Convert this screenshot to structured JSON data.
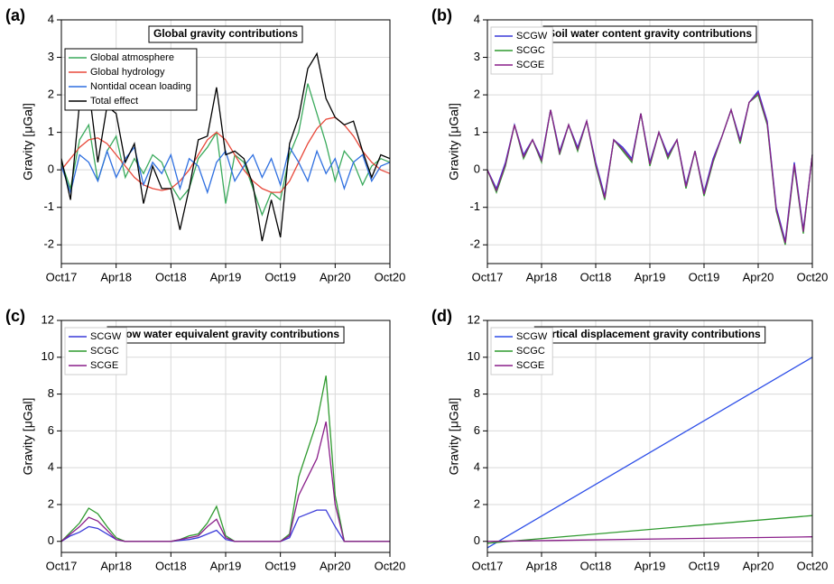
{
  "chart_data": [
    {
      "type": "line",
      "label": "(a)",
      "title": "Global gravity contributions",
      "ylabel": "Gravity [μGal]",
      "x": [
        "2017-10",
        "2017-11",
        "2017-12",
        "2018-01",
        "2018-02",
        "2018-03",
        "2018-04",
        "2018-05",
        "2018-06",
        "2018-07",
        "2018-08",
        "2018-09",
        "2018-10",
        "2018-11",
        "2018-12",
        "2019-01",
        "2019-02",
        "2019-03",
        "2019-04",
        "2019-05",
        "2019-06",
        "2019-07",
        "2019-08",
        "2019-09",
        "2019-10",
        "2019-11",
        "2019-12",
        "2020-01",
        "2020-02",
        "2020-03",
        "2020-04",
        "2020-05",
        "2020-06",
        "2020-07",
        "2020-08",
        "2020-09",
        "2020-10"
      ],
      "xlim": [
        "2017-10",
        "2020-10"
      ],
      "xticks": [
        {
          "value": "2017-10",
          "label": "Oct17"
        },
        {
          "value": "2018-04",
          "label": "Apr18"
        },
        {
          "value": "2018-10",
          "label": "Oct18"
        },
        {
          "value": "2019-04",
          "label": "Apr19"
        },
        {
          "value": "2019-10",
          "label": "Oct19"
        },
        {
          "value": "2020-04",
          "label": "Apr20"
        },
        {
          "value": "2020-10",
          "label": "Oct20"
        }
      ],
      "ylim": [
        -2.5,
        4
      ],
      "yticks": [
        -2,
        -1,
        0,
        1,
        2,
        3,
        4
      ],
      "grid": true,
      "legend": "upper-left",
      "series": [
        {
          "name": "Global atmosphere",
          "color": "#3aaa5c",
          "values": [
            0.2,
            -0.5,
            0.8,
            1.2,
            -0.3,
            0.5,
            0.9,
            -0.2,
            0.3,
            -0.1,
            0.4,
            0.2,
            -0.4,
            -0.8,
            -0.5,
            0.3,
            0.6,
            1.0,
            -0.9,
            0.4,
            0.2,
            -0.5,
            -1.2,
            -0.6,
            -0.8,
            0.4,
            1.0,
            2.3,
            1.5,
            0.7,
            -0.3,
            0.5,
            0.2,
            -0.4,
            0.1,
            0.3,
            0.2
          ]
        },
        {
          "name": "Global hydrology",
          "color": "#e8483a",
          "values": [
            0,
            0.3,
            0.6,
            0.8,
            0.85,
            0.7,
            0.4,
            0.1,
            -0.2,
            -0.4,
            -0.5,
            -0.55,
            -0.5,
            -0.3,
            0,
            0.4,
            0.8,
            1.0,
            0.8,
            0.4,
            0,
            -0.3,
            -0.5,
            -0.6,
            -0.6,
            -0.3,
            0.2,
            0.7,
            1.1,
            1.35,
            1.4,
            1.2,
            0.9,
            0.5,
            0.2,
            0,
            -0.1
          ]
        },
        {
          "name": "Nontidal ocean loading",
          "color": "#2e6fe0",
          "values": [
            0.1,
            -0.6,
            0.4,
            0.2,
            -0.3,
            0.5,
            -0.2,
            0.3,
            0.6,
            -0.4,
            0.2,
            -0.1,
            0.4,
            -0.5,
            0.3,
            0.1,
            -0.6,
            0.2,
            0.5,
            -0.3,
            0.1,
            0.4,
            -0.2,
            0.3,
            -0.4,
            0.6,
            0.2,
            -0.3,
            0.5,
            -0.1,
            0.3,
            -0.5,
            0.2,
            0.4,
            -0.3,
            0.1,
            0.2
          ]
        },
        {
          "name": "Total effect",
          "color": "#000000",
          "values": [
            0.3,
            -0.8,
            1.8,
            2.2,
            0.2,
            1.7,
            1.5,
            0.2,
            0.7,
            -0.9,
            0.1,
            -0.5,
            -0.5,
            -1.6,
            -0.5,
            0.8,
            0.9,
            2.2,
            0.4,
            0.5,
            0.3,
            -0.4,
            -1.9,
            -0.8,
            -1.8,
            0.7,
            1.4,
            2.7,
            3.1,
            1.9,
            1.4,
            1.2,
            1.3,
            0.5,
            -0.2,
            0.4,
            0.3
          ]
        }
      ]
    },
    {
      "type": "line",
      "label": "(b)",
      "title": "Soil water content gravity contributions",
      "ylabel": "Gravity [μGal]",
      "x": [
        "2017-10",
        "2017-11",
        "2017-12",
        "2018-01",
        "2018-02",
        "2018-03",
        "2018-04",
        "2018-05",
        "2018-06",
        "2018-07",
        "2018-08",
        "2018-09",
        "2018-10",
        "2018-11",
        "2018-12",
        "2019-01",
        "2019-02",
        "2019-03",
        "2019-04",
        "2019-05",
        "2019-06",
        "2019-07",
        "2019-08",
        "2019-09",
        "2019-10",
        "2019-11",
        "2019-12",
        "2020-01",
        "2020-02",
        "2020-03",
        "2020-04",
        "2020-05",
        "2020-06",
        "2020-07",
        "2020-08",
        "2020-09",
        "2020-10"
      ],
      "xlim": [
        "2017-10",
        "2020-10"
      ],
      "xticks": [
        {
          "value": "2017-10",
          "label": "Oct17"
        },
        {
          "value": "2018-04",
          "label": "Apr18"
        },
        {
          "value": "2018-10",
          "label": "Oct18"
        },
        {
          "value": "2019-04",
          "label": "Apr19"
        },
        {
          "value": "2019-10",
          "label": "Oct19"
        },
        {
          "value": "2020-04",
          "label": "Apr20"
        },
        {
          "value": "2020-10",
          "label": "Oct20"
        }
      ],
      "ylim": [
        -2.5,
        4
      ],
      "yticks": [
        -2,
        -1,
        0,
        1,
        2,
        3,
        4
      ],
      "grid": true,
      "legend": "upper-left",
      "series": [
        {
          "name": "SCGW",
          "color": "#3a3ad8",
          "values": [
            0,
            -0.5,
            0.2,
            1.2,
            0.4,
            0.8,
            0.3,
            1.6,
            0.5,
            1.2,
            0.6,
            1.3,
            0.2,
            -0.7,
            0.8,
            0.6,
            0.3,
            1.5,
            0.2,
            1.0,
            0.4,
            0.8,
            -0.4,
            0.5,
            -0.6,
            0.3,
            0.9,
            1.6,
            0.8,
            1.8,
            2.1,
            1.3,
            -1.0,
            -1.9,
            0.2,
            -1.6,
            0.4
          ]
        },
        {
          "name": "SCGC",
          "color": "#2f9a2f",
          "values": [
            0,
            -0.6,
            0.1,
            1.2,
            0.3,
            0.8,
            0.2,
            1.6,
            0.4,
            1.2,
            0.5,
            1.3,
            0.1,
            -0.8,
            0.8,
            0.5,
            0.2,
            1.5,
            0.1,
            1.0,
            0.3,
            0.8,
            -0.5,
            0.5,
            -0.7,
            0.2,
            0.9,
            1.6,
            0.7,
            1.8,
            2.0,
            1.2,
            -1.1,
            -2.0,
            0.1,
            -1.7,
            0.4
          ]
        },
        {
          "name": "SCGE",
          "color": "#8a1f8a",
          "values": [
            0,
            -0.55,
            0.15,
            1.2,
            0.35,
            0.8,
            0.25,
            1.6,
            0.45,
            1.2,
            0.55,
            1.3,
            0.15,
            -0.75,
            0.8,
            0.55,
            0.25,
            1.5,
            0.15,
            1.0,
            0.35,
            0.8,
            -0.45,
            0.5,
            -0.65,
            0.25,
            0.9,
            1.6,
            0.75,
            1.8,
            2.05,
            1.25,
            -1.05,
            -1.95,
            0.15,
            -1.65,
            0.4
          ]
        }
      ]
    },
    {
      "type": "line",
      "label": "(c)",
      "title": "Snow water equivalent gravity contributions",
      "ylabel": "Gravity [μGal]",
      "x": [
        "2017-10",
        "2017-11",
        "2017-12",
        "2018-01",
        "2018-02",
        "2018-03",
        "2018-04",
        "2018-05",
        "2018-06",
        "2018-07",
        "2018-08",
        "2018-09",
        "2018-10",
        "2018-11",
        "2018-12",
        "2019-01",
        "2019-02",
        "2019-03",
        "2019-04",
        "2019-05",
        "2019-06",
        "2019-07",
        "2019-08",
        "2019-09",
        "2019-10",
        "2019-11",
        "2019-12",
        "2020-01",
        "2020-02",
        "2020-03",
        "2020-04",
        "2020-05",
        "2020-06",
        "2020-07",
        "2020-08",
        "2020-09",
        "2020-10"
      ],
      "xlim": [
        "2017-10",
        "2020-10"
      ],
      "xticks": [
        {
          "value": "2017-10",
          "label": "Oct17"
        },
        {
          "value": "2018-04",
          "label": "Apr18"
        },
        {
          "value": "2018-10",
          "label": "Oct18"
        },
        {
          "value": "2019-04",
          "label": "Apr19"
        },
        {
          "value": "2019-10",
          "label": "Oct19"
        },
        {
          "value": "2020-04",
          "label": "Apr20"
        },
        {
          "value": "2020-10",
          "label": "Oct20"
        }
      ],
      "ylim": [
        -0.6,
        12
      ],
      "yticks": [
        0,
        2,
        4,
        6,
        8,
        10,
        12
      ],
      "grid": true,
      "legend": "upper-left",
      "series": [
        {
          "name": "SCGW",
          "color": "#3a3ad8",
          "values": [
            0,
            0.3,
            0.5,
            0.8,
            0.7,
            0.4,
            0.1,
            0,
            0,
            0,
            0,
            0,
            0,
            0.05,
            0.1,
            0.2,
            0.4,
            0.6,
            0.1,
            0,
            0,
            0,
            0,
            0,
            0,
            0.2,
            1.3,
            1.5,
            1.7,
            1.7,
            0.8,
            0,
            0,
            0,
            0,
            0,
            0
          ]
        },
        {
          "name": "SCGC",
          "color": "#2f9a2f",
          "values": [
            0,
            0.5,
            1.0,
            1.8,
            1.5,
            0.8,
            0.2,
            0,
            0,
            0,
            0,
            0,
            0,
            0.1,
            0.3,
            0.4,
            1.0,
            1.9,
            0.3,
            0,
            0,
            0,
            0,
            0,
            0,
            0.4,
            3.5,
            5.0,
            6.5,
            9.0,
            2.5,
            0,
            0,
            0,
            0,
            0,
            0
          ]
        },
        {
          "name": "SCGE",
          "color": "#8a1f8a",
          "values": [
            0,
            0.4,
            0.8,
            1.3,
            1.1,
            0.6,
            0.1,
            0,
            0,
            0,
            0,
            0,
            0,
            0.1,
            0.2,
            0.3,
            0.8,
            1.2,
            0.2,
            0,
            0,
            0,
            0,
            0,
            0,
            0.3,
            2.5,
            3.5,
            4.5,
            6.5,
            2.0,
            0,
            0,
            0,
            0,
            0,
            0
          ]
        }
      ]
    },
    {
      "type": "line",
      "label": "(d)",
      "title": "Vertical displacement gravity contributions",
      "ylabel": "Gravity [μGal]",
      "x": [
        "2017-10",
        "2020-10"
      ],
      "xlim": [
        "2017-10",
        "2020-10"
      ],
      "xticks": [
        {
          "value": "2017-10",
          "label": "Oct17"
        },
        {
          "value": "2018-04",
          "label": "Apr18"
        },
        {
          "value": "2018-10",
          "label": "Oct18"
        },
        {
          "value": "2019-04",
          "label": "Apr19"
        },
        {
          "value": "2019-10",
          "label": "Oct19"
        },
        {
          "value": "2020-04",
          "label": "Apr20"
        },
        {
          "value": "2020-10",
          "label": "Oct20"
        }
      ],
      "ylim": [
        -0.6,
        12
      ],
      "yticks": [
        0,
        2,
        4,
        6,
        8,
        10,
        12
      ],
      "grid": true,
      "legend": "upper-left",
      "series": [
        {
          "name": "SCGW",
          "color": "#2e4fe8",
          "values": [
            -0.35,
            10
          ]
        },
        {
          "name": "SCGC",
          "color": "#2f9a2f",
          "values": [
            -0.1,
            1.4
          ]
        },
        {
          "name": "SCGE",
          "color": "#8a1f8a",
          "values": [
            0,
            0.25
          ]
        }
      ]
    }
  ]
}
